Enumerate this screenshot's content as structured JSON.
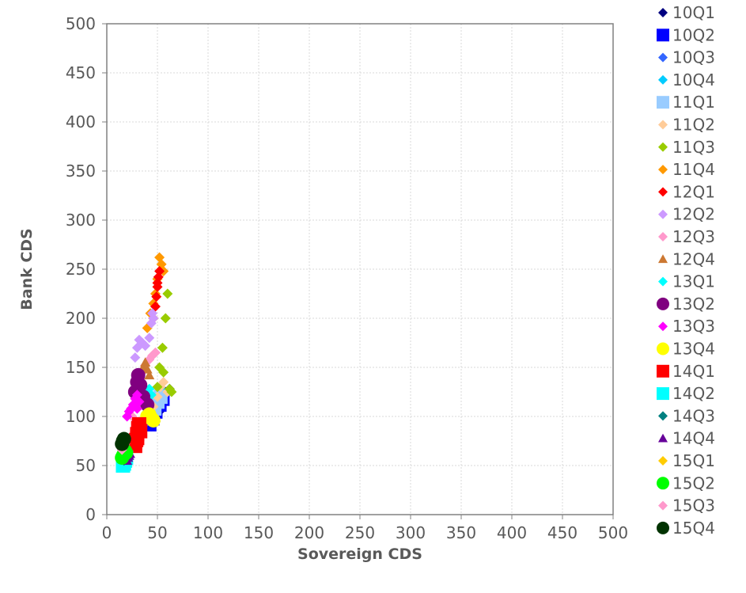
{
  "chart_data": {
    "type": "scatter",
    "title": "",
    "xlabel": "Sovereign CDS",
    "ylabel": "Bank CDS",
    "xlim": [
      0,
      500
    ],
    "ylim": [
      0,
      500
    ],
    "x_ticks": [
      "0",
      "50",
      "100",
      "150",
      "200",
      "250",
      "300",
      "350",
      "400",
      "450",
      "500"
    ],
    "y_ticks": [
      "0",
      "50",
      "100",
      "150",
      "200",
      "250",
      "300",
      "350",
      "400",
      "450",
      "500"
    ],
    "grid": true,
    "legend_position": "right",
    "series": [
      {
        "name": "10Q1",
        "color": "#000080",
        "marker": "diamond",
        "points": [
          [
            44,
            90
          ],
          [
            48,
            95
          ],
          [
            52,
            105
          ],
          [
            55,
            115
          ],
          [
            58,
            125
          ],
          [
            62,
            128
          ],
          [
            50,
            100
          ]
        ]
      },
      {
        "name": "10Q2",
        "color": "#0000ff",
        "marker": "square",
        "points": [
          [
            42,
            92
          ],
          [
            45,
            98
          ],
          [
            48,
            105
          ],
          [
            52,
            112
          ],
          [
            55,
            118
          ]
        ]
      },
      {
        "name": "10Q3",
        "color": "#3366ff",
        "marker": "diamond",
        "points": [
          [
            40,
            95
          ],
          [
            43,
            100
          ],
          [
            46,
            108
          ],
          [
            50,
            115
          ],
          [
            53,
            122
          ],
          [
            56,
            126
          ]
        ]
      },
      {
        "name": "10Q4",
        "color": "#00ccff",
        "marker": "diamond",
        "points": [
          [
            40,
            105
          ],
          [
            43,
            110
          ],
          [
            46,
            115
          ],
          [
            50,
            122
          ],
          [
            53,
            128
          ]
        ]
      },
      {
        "name": "11Q1",
        "color": "#99ccff",
        "marker": "square",
        "points": [
          [
            44,
            100
          ],
          [
            47,
            108
          ],
          [
            50,
            115
          ],
          [
            53,
            120
          ]
        ]
      },
      {
        "name": "11Q2",
        "color": "#ffcc99",
        "marker": "diamond",
        "points": [
          [
            46,
            110
          ],
          [
            50,
            120
          ],
          [
            53,
            130
          ],
          [
            56,
            135
          ],
          [
            60,
            125
          ]
        ]
      },
      {
        "name": "11Q3",
        "color": "#99cc00",
        "marker": "diamond",
        "points": [
          [
            50,
            130
          ],
          [
            52,
            150
          ],
          [
            55,
            170
          ],
          [
            58,
            200
          ],
          [
            60,
            225
          ],
          [
            62,
            128
          ],
          [
            64,
            125
          ],
          [
            56,
            145
          ]
        ]
      },
      {
        "name": "11Q4",
        "color": "#ff9900",
        "marker": "diamond",
        "points": [
          [
            40,
            190
          ],
          [
            43,
            205
          ],
          [
            46,
            215
          ],
          [
            48,
            225
          ],
          [
            50,
            240
          ],
          [
            52,
            262
          ],
          [
            54,
            255
          ],
          [
            56,
            248
          ]
        ]
      },
      {
        "name": "12Q1",
        "color": "#ff0000",
        "marker": "diamond",
        "points": [
          [
            46,
            200
          ],
          [
            48,
            212
          ],
          [
            49,
            222
          ],
          [
            50,
            232
          ],
          [
            51,
            242
          ],
          [
            52,
            248
          ],
          [
            50,
            236
          ]
        ]
      },
      {
        "name": "12Q2",
        "color": "#cc99ff",
        "marker": "diamond",
        "points": [
          [
            28,
            160
          ],
          [
            30,
            170
          ],
          [
            32,
            178
          ],
          [
            35,
            175
          ],
          [
            38,
            172
          ],
          [
            42,
            180
          ],
          [
            44,
            195
          ],
          [
            45,
            205
          ],
          [
            46,
            200
          ]
        ]
      },
      {
        "name": "12Q3",
        "color": "#ff99cc",
        "marker": "diamond",
        "points": [
          [
            35,
            145
          ],
          [
            38,
            152
          ],
          [
            42,
            158
          ],
          [
            45,
            162
          ],
          [
            48,
            165
          ],
          [
            25,
            100
          ],
          [
            22,
            72
          ],
          [
            18,
            65
          ]
        ]
      },
      {
        "name": "12Q4",
        "color": "#cc7832",
        "marker": "triangle",
        "points": [
          [
            36,
            150
          ],
          [
            38,
            155
          ],
          [
            40,
            148
          ],
          [
            42,
            142
          ]
        ]
      },
      {
        "name": "13Q1",
        "color": "#00ffff",
        "marker": "diamond",
        "points": [
          [
            38,
            120
          ],
          [
            40,
            125
          ],
          [
            42,
            128
          ],
          [
            44,
            122
          ]
        ]
      },
      {
        "name": "13Q2",
        "color": "#800080",
        "marker": "circle",
        "points": [
          [
            28,
            125
          ],
          [
            30,
            135
          ],
          [
            31,
            142
          ],
          [
            33,
            132
          ],
          [
            36,
            120
          ],
          [
            40,
            112
          ]
        ]
      },
      {
        "name": "13Q3",
        "color": "#ff00ff",
        "marker": "diamond",
        "points": [
          [
            20,
            100
          ],
          [
            22,
            105
          ],
          [
            24,
            108
          ],
          [
            26,
            112
          ],
          [
            28,
            118
          ],
          [
            30,
            122
          ],
          [
            32,
            115
          ],
          [
            30,
            108
          ]
        ]
      },
      {
        "name": "13Q4",
        "color": "#ffff00",
        "marker": "circle",
        "points": [
          [
            40,
            100
          ],
          [
            42,
            102
          ],
          [
            44,
            98
          ],
          [
            46,
            96
          ],
          [
            43,
            99
          ]
        ]
      },
      {
        "name": "14Q1",
        "color": "#ff0000",
        "marker": "square",
        "points": [
          [
            28,
            70
          ],
          [
            29,
            76
          ],
          [
            30,
            82
          ],
          [
            31,
            88
          ],
          [
            32,
            92
          ],
          [
            33,
            85
          ],
          [
            30,
            78
          ]
        ]
      },
      {
        "name": "14Q2",
        "color": "#00ffff",
        "marker": "square",
        "points": [
          [
            16,
            50
          ],
          [
            17,
            52
          ],
          [
            18,
            55
          ],
          [
            19,
            58
          ]
        ]
      },
      {
        "name": "14Q3",
        "color": "#008080",
        "marker": "diamond",
        "points": [
          [
            17,
            55
          ],
          [
            18,
            58
          ],
          [
            19,
            60
          ],
          [
            20,
            63
          ]
        ]
      },
      {
        "name": "14Q4",
        "color": "#660099",
        "marker": "triangle",
        "points": [
          [
            20,
            55
          ],
          [
            21,
            58
          ],
          [
            22,
            60
          ],
          [
            23,
            62
          ]
        ]
      },
      {
        "name": "15Q1",
        "color": "#ffcc00",
        "marker": "diamond",
        "points": [
          [
            16,
            62
          ],
          [
            17,
            64
          ],
          [
            18,
            66
          ],
          [
            19,
            68
          ]
        ]
      },
      {
        "name": "15Q2",
        "color": "#00ff00",
        "marker": "circle",
        "points": [
          [
            15,
            58
          ],
          [
            16,
            60
          ],
          [
            17,
            62
          ],
          [
            18,
            65
          ],
          [
            19,
            63
          ]
        ]
      },
      {
        "name": "15Q3",
        "color": "#ff99cc",
        "marker": "diamond",
        "points": [
          [
            15,
            66
          ],
          [
            16,
            68
          ],
          [
            17,
            70
          ],
          [
            18,
            72
          ]
        ]
      },
      {
        "name": "15Q4",
        "color": "#003300",
        "marker": "circle",
        "points": [
          [
            15,
            72
          ],
          [
            16,
            75
          ],
          [
            17,
            77
          ]
        ]
      }
    ]
  }
}
